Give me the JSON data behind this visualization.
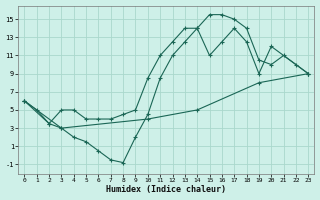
{
  "xlabel": "Humidex (Indice chaleur)",
  "bg_color": "#cef0e8",
  "grid_color": "#aad8cc",
  "line_color": "#1a6655",
  "xlim": [
    -0.5,
    23.5
  ],
  "ylim": [
    -2.0,
    16.5
  ],
  "xticks": [
    0,
    1,
    2,
    3,
    4,
    5,
    6,
    7,
    8,
    9,
    10,
    11,
    12,
    13,
    14,
    15,
    16,
    17,
    18,
    19,
    20,
    21,
    22,
    23
  ],
  "yticks": [
    -1,
    1,
    3,
    5,
    7,
    9,
    11,
    13,
    15
  ],
  "line1_x": [
    0,
    1,
    2,
    3,
    4,
    5,
    6,
    7,
    8,
    9,
    10,
    11,
    12,
    13,
    14,
    15,
    16,
    17,
    18,
    19,
    20,
    21,
    22,
    23
  ],
  "line1_y": [
    6,
    5,
    3.5,
    3,
    2,
    1.5,
    0.5,
    -0.5,
    -0.8,
    2,
    4.5,
    8.5,
    11,
    12.5,
    14,
    15.5,
    15.5,
    15,
    14,
    10.5,
    10,
    11,
    10,
    9
  ],
  "line2_x": [
    0,
    2,
    3,
    4,
    5,
    6,
    7,
    8,
    9,
    10,
    11,
    12,
    13,
    14,
    15,
    16,
    17,
    18,
    19,
    20,
    23
  ],
  "line2_y": [
    6,
    3.5,
    5,
    5,
    4,
    4,
    4,
    4.5,
    5,
    8.5,
    11,
    12.5,
    14,
    14,
    11,
    12.5,
    14,
    12.5,
    9,
    12,
    9
  ],
  "line3_x": [
    0,
    3,
    10,
    14,
    19,
    23
  ],
  "line3_y": [
    6,
    3,
    4,
    5,
    8,
    9
  ]
}
